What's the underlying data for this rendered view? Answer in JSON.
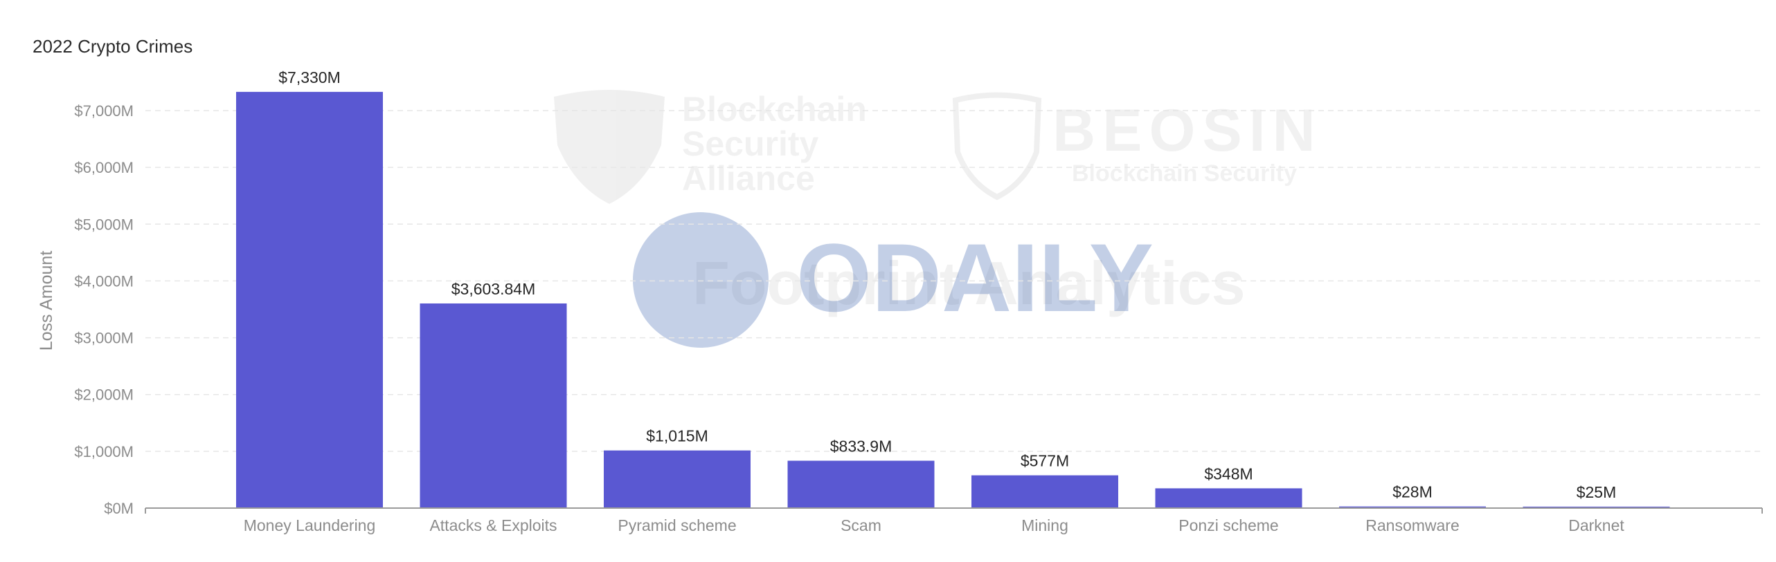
{
  "chart_data": {
    "type": "bar",
    "title": "2022 Crypto Crimes",
    "xlabel": "",
    "ylabel": "Loss Amount",
    "categories": [
      "Money Laundering",
      "Attacks & Exploits",
      "Pyramid scheme",
      "Scam",
      "Mining",
      "Ponzi scheme",
      "Ransomware",
      "Darknet"
    ],
    "values": [
      7330,
      3603.84,
      1015,
      833.9,
      577,
      348,
      28,
      25
    ],
    "data_labels": [
      "$7,330M",
      "$3,603.84M",
      "$1,015M",
      "$833.9M",
      "$577M",
      "$348M",
      "$28M",
      "$25M"
    ],
    "ylim": [
      0,
      7000
    ],
    "yticks": [
      0,
      1000,
      2000,
      3000,
      4000,
      5000,
      6000,
      7000
    ],
    "ytick_labels": [
      "$0M",
      "$1,000M",
      "$2,000M",
      "$3,000M",
      "$4,000M",
      "$5,000M",
      "$6,000M",
      "$7,000M"
    ],
    "grid": true,
    "bar_color": "#5a58d2",
    "grid_color": "#e6e6e6"
  },
  "watermarks": {
    "bsa": [
      "Blockchain",
      "Security",
      "Alliance"
    ],
    "beosin_name": "BEOSIN",
    "beosin_sub": "Blockchain Security",
    "footprint": "Footprint Analytics",
    "odaily": "ODAILY"
  }
}
